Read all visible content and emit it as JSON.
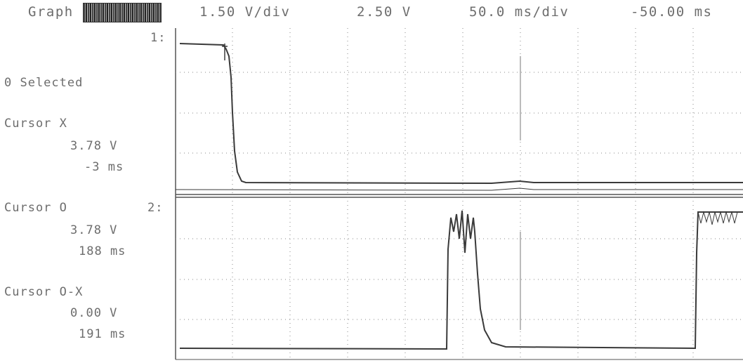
{
  "header": {
    "graph_label": "Graph",
    "volts_per_div": "1.50 V/div",
    "offset": "2.50 V",
    "time_per_div": "50.0 ms/div",
    "delay": "-50.00 ms"
  },
  "channels": {
    "ch1_label": "1:",
    "ch2_label": "2:"
  },
  "side_panel": {
    "selected": "0 Selected",
    "cursor_x": {
      "title": "Cursor X",
      "voltage": "3.78 V",
      "time": "-3 ms"
    },
    "cursor_o": {
      "title": "Cursor O",
      "voltage": "3.78 V",
      "time": "188 ms"
    },
    "cursor_ox": {
      "title": "Cursor O-X",
      "voltage": "0.00 V",
      "time": "191 ms"
    }
  },
  "colors": {
    "trace": "#3a3a3a",
    "grid": "#8a8a8a",
    "text": "#6d6d6d"
  }
}
